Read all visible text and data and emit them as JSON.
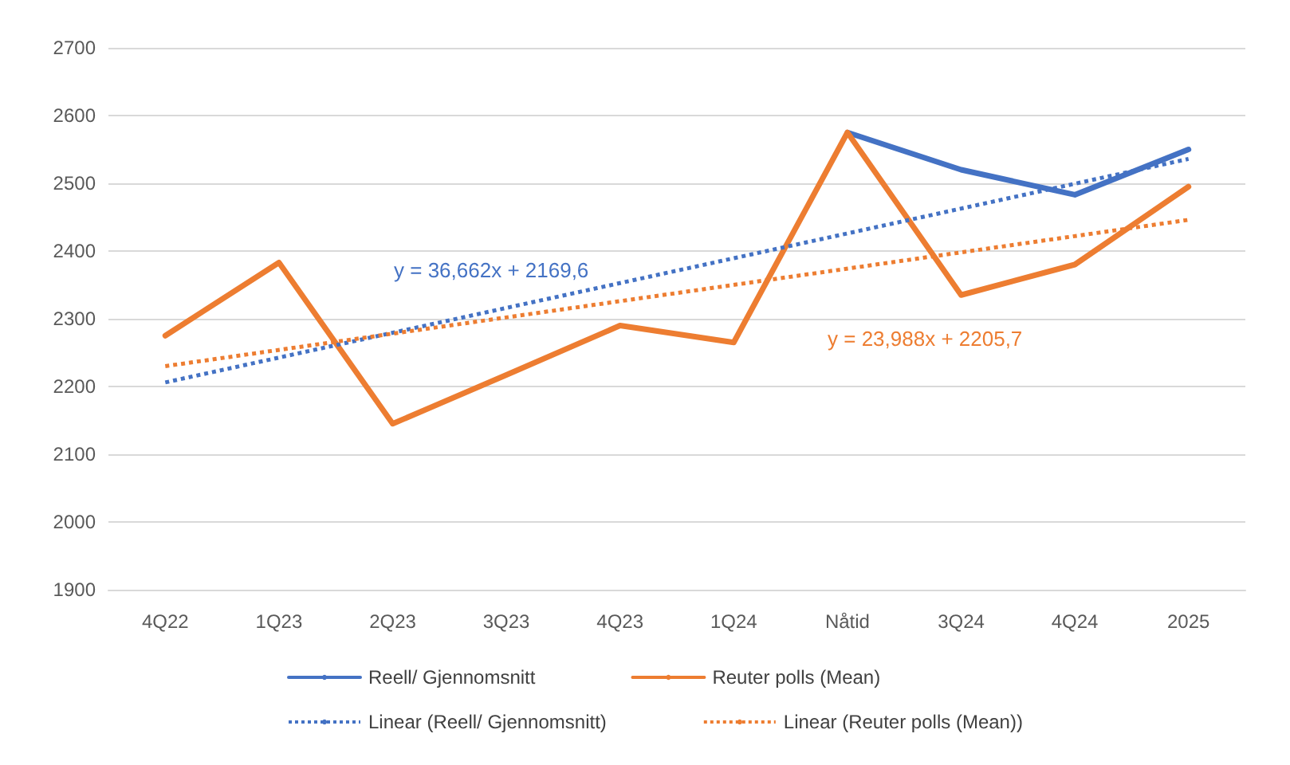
{
  "chart_data": {
    "type": "line",
    "categories": [
      "4Q22",
      "1Q23",
      "2Q23",
      "3Q23",
      "4Q23",
      "1Q24",
      "Nåtid",
      "3Q24",
      "4Q24",
      "2025"
    ],
    "series": [
      {
        "name": "Reell/ Gjennomsnitt",
        "color": "#4472c4",
        "values": [
          null,
          null,
          null,
          null,
          null,
          null,
          2575,
          2520,
          2483,
          2550
        ]
      },
      {
        "name": "Reuter polls (Mean)",
        "color": "#ed7d31",
        "values": [
          2275,
          2383,
          2145,
          2217,
          2290,
          2265,
          2575,
          2335,
          2380,
          2495
        ]
      },
      {
        "name": "Linear (Reell/ Gjennomsnitt)",
        "color": "#4472c4",
        "line_style": "dotted",
        "values": [
          2206,
          null,
          null,
          null,
          null,
          null,
          null,
          null,
          null,
          2536
        ]
      },
      {
        "name": "Linear (Reuter polls (Mean))",
        "color": "#ed7d31",
        "line_style": "dotted",
        "values": [
          2230,
          null,
          null,
          null,
          null,
          null,
          null,
          null,
          null,
          2446
        ]
      }
    ],
    "annotations": [
      "y = 36,662x + 2169,6",
      "y = 23,988x + 2205,7"
    ],
    "ylim": [
      1900,
      2700
    ],
    "yticks": [
      1900,
      2000,
      2100,
      2200,
      2300,
      2400,
      2500,
      2600,
      2700
    ],
    "grid": "y",
    "legend": "bottom",
    "marker": "none",
    "line_style": "solid"
  }
}
